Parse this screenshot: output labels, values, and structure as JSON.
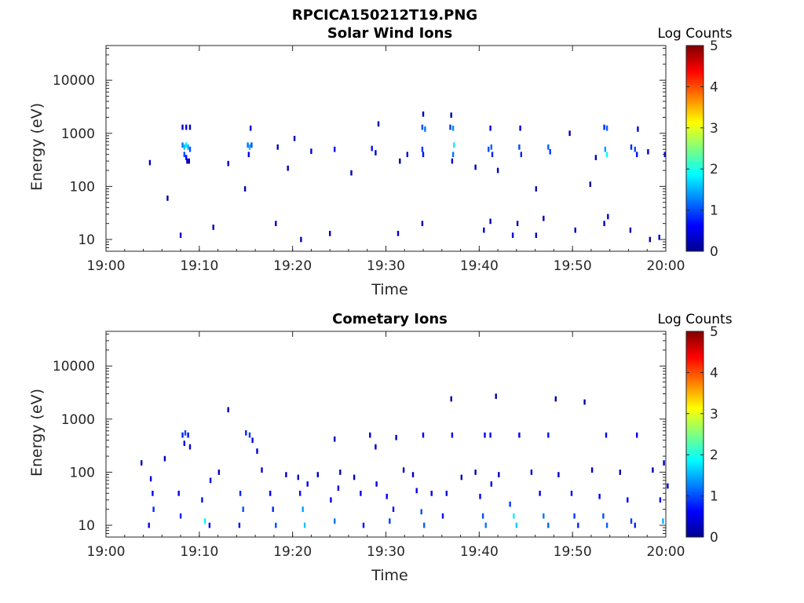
{
  "figure_title": "RPCICA150212T19.PNG",
  "chart_data": [
    {
      "type": "heatmap",
      "title": "Solar Wind Ions",
      "xlabel": "Time",
      "ylabel": "Energy (eV)",
      "x_ticks": [
        "19:00",
        "19:10",
        "19:20",
        "19:30",
        "19:40",
        "19:50",
        "20:00"
      ],
      "y_ticks": [
        "10",
        "100",
        "1000",
        "10000"
      ],
      "y_scale": "log",
      "ylim": [
        6,
        45000
      ],
      "xlim_minutes": [
        0,
        60
      ],
      "colorbar": {
        "label": "Log Counts",
        "ticks": [
          "0",
          "1",
          "2",
          "3",
          "4",
          "5"
        ],
        "range": [
          0,
          5
        ],
        "colormap": "jet"
      },
      "cells": [
        [
          8.1,
          1300,
          0.4
        ],
        [
          8.5,
          1300,
          0.6
        ],
        [
          8.9,
          1300,
          0.3
        ],
        [
          8.1,
          600,
          1.2
        ],
        [
          8.3,
          550,
          1.6
        ],
        [
          8.5,
          600,
          1.8
        ],
        [
          8.7,
          550,
          1.5
        ],
        [
          8.9,
          500,
          1.0
        ],
        [
          8.3,
          400,
          1.0
        ],
        [
          8.5,
          350,
          0.7
        ],
        [
          8.6,
          300,
          0.3
        ],
        [
          8.8,
          300,
          0.2
        ],
        [
          15.1,
          600,
          1.2
        ],
        [
          15.3,
          550,
          1.5
        ],
        [
          15.5,
          600,
          1.0
        ],
        [
          15.2,
          400,
          0.6
        ],
        [
          15.4,
          1250,
          0.5
        ],
        [
          33.8,
          1300,
          1.0
        ],
        [
          34.1,
          1200,
          1.2
        ],
        [
          33.9,
          2300,
          0.3
        ],
        [
          33.8,
          500,
          0.9
        ],
        [
          33.9,
          400,
          0.7
        ],
        [
          36.8,
          1300,
          0.9
        ],
        [
          37.1,
          1250,
          1.3
        ],
        [
          36.9,
          2200,
          0.2
        ],
        [
          37.2,
          600,
          1.8
        ],
        [
          37.1,
          400,
          1.2
        ],
        [
          37.0,
          300,
          0.5
        ],
        [
          40.9,
          500,
          1.0
        ],
        [
          41.2,
          550,
          1.1
        ],
        [
          41.1,
          1250,
          0.6
        ],
        [
          41.3,
          400,
          0.8
        ],
        [
          44.2,
          550,
          1.0
        ],
        [
          44.4,
          400,
          0.8
        ],
        [
          44.3,
          1250,
          0.4
        ],
        [
          47.3,
          550,
          1.1
        ],
        [
          47.5,
          450,
          0.9
        ],
        [
          53.3,
          1300,
          0.8
        ],
        [
          53.6,
          1250,
          1.1
        ],
        [
          53.4,
          500,
          1.4
        ],
        [
          53.6,
          400,
          1.9
        ],
        [
          56.2,
          550,
          0.8
        ],
        [
          56.6,
          500,
          1.0
        ],
        [
          56.8,
          400,
          0.7
        ],
        [
          56.9,
          1200,
          0.4
        ],
        [
          59.8,
          400,
          0.5
        ],
        [
          4.6,
          280,
          0.3
        ],
        [
          18.3,
          550,
          0.3
        ],
        [
          19.4,
          220,
          0.3
        ],
        [
          20.1,
          800,
          0.2
        ],
        [
          21.9,
          460,
          0.4
        ],
        [
          24.4,
          500,
          0.6
        ],
        [
          26.2,
          180,
          0.3
        ],
        [
          28.4,
          520,
          0.7
        ],
        [
          28.8,
          430,
          0.5
        ],
        [
          29.1,
          1500,
          0.3
        ],
        [
          31.4,
          300,
          0.2
        ],
        [
          32.2,
          400,
          0.5
        ],
        [
          39.5,
          230,
          0.3
        ],
        [
          41.9,
          200,
          0.3
        ],
        [
          46.0,
          90,
          0.2
        ],
        [
          49.6,
          1000,
          0.2
        ],
        [
          51.8,
          110,
          0.2
        ],
        [
          52.4,
          350,
          0.3
        ],
        [
          58.0,
          450,
          0.3
        ],
        [
          6.5,
          60,
          0.2
        ],
        [
          13.0,
          270,
          0.3
        ],
        [
          14.8,
          90,
          0.2
        ],
        [
          7.9,
          12,
          0.3
        ],
        [
          11.4,
          17,
          0.3
        ],
        [
          18.1,
          20,
          0.4
        ],
        [
          20.8,
          10,
          0.3
        ],
        [
          23.9,
          13,
          0.3
        ],
        [
          31.2,
          13,
          0.3
        ],
        [
          33.8,
          20,
          0.3
        ],
        [
          40.4,
          15,
          0.4
        ],
        [
          41.1,
          22,
          0.3
        ],
        [
          43.5,
          12,
          0.5
        ],
        [
          44.0,
          20,
          0.3
        ],
        [
          46.0,
          12,
          0.3
        ],
        [
          46.8,
          25,
          0.3
        ],
        [
          50.2,
          15,
          0.3
        ],
        [
          53.3,
          20,
          0.4
        ],
        [
          53.7,
          27,
          0.3
        ],
        [
          56.1,
          15,
          0.3
        ],
        [
          58.2,
          10,
          0.3
        ],
        [
          59.2,
          11,
          0.3
        ]
      ]
    },
    {
      "type": "heatmap",
      "title": "Cometary Ions",
      "xlabel": "Time",
      "ylabel": "Energy (eV)",
      "x_ticks": [
        "19:00",
        "19:10",
        "19:20",
        "19:30",
        "19:40",
        "19:50",
        "20:00"
      ],
      "y_ticks": [
        "10",
        "100",
        "1000",
        "10000"
      ],
      "y_scale": "log",
      "ylim": [
        6,
        45000
      ],
      "xlim_minutes": [
        0,
        60
      ],
      "colorbar": {
        "label": "Log Counts",
        "ticks": [
          "0",
          "1",
          "2",
          "3",
          "4",
          "5"
        ],
        "range": [
          0,
          5
        ],
        "colormap": "jet"
      },
      "cells": [
        [
          8.1,
          500,
          0.8
        ],
        [
          8.4,
          550,
          1.0
        ],
        [
          8.7,
          500,
          0.7
        ],
        [
          8.3,
          350,
          0.5
        ],
        [
          8.9,
          300,
          0.4
        ],
        [
          14.9,
          550,
          0.8
        ],
        [
          15.3,
          500,
          0.9
        ],
        [
          15.6,
          400,
          0.6
        ],
        [
          16.1,
          250,
          0.4
        ],
        [
          13.0,
          1500,
          0.2
        ],
        [
          24.4,
          420,
          0.3
        ],
        [
          28.2,
          500,
          0.4
        ],
        [
          28.8,
          300,
          0.4
        ],
        [
          31.0,
          450,
          0.3
        ],
        [
          33.9,
          500,
          0.6
        ],
        [
          37.0,
          500,
          0.6
        ],
        [
          36.9,
          2400,
          0.2
        ],
        [
          41.7,
          2700,
          0.2
        ],
        [
          40.5,
          500,
          0.6
        ],
        [
          41.1,
          500,
          0.7
        ],
        [
          44.2,
          500,
          0.6
        ],
        [
          47.3,
          500,
          0.7
        ],
        [
          48.1,
          2400,
          0.2
        ],
        [
          51.2,
          2100,
          0.2
        ],
        [
          53.5,
          500,
          0.6
        ],
        [
          56.8,
          500,
          0.6
        ],
        [
          59.7,
          150,
          0.3
        ],
        [
          3.7,
          150,
          0.3
        ],
        [
          6.2,
          180,
          0.3
        ],
        [
          4.7,
          75,
          0.5
        ],
        [
          4.9,
          40,
          0.6
        ],
        [
          5.0,
          20,
          0.8
        ],
        [
          4.5,
          10,
          0.6
        ],
        [
          7.7,
          40,
          0.5
        ],
        [
          7.9,
          15,
          0.8
        ],
        [
          10.2,
          30,
          0.7
        ],
        [
          10.5,
          12,
          1.8
        ],
        [
          11.1,
          70,
          0.5
        ],
        [
          11.0,
          10,
          0.6
        ],
        [
          14.3,
          40,
          0.8
        ],
        [
          14.6,
          20,
          1.0
        ],
        [
          14.2,
          10,
          0.7
        ],
        [
          17.5,
          40,
          0.6
        ],
        [
          17.8,
          20,
          0.8
        ],
        [
          18.1,
          10,
          1.0
        ],
        [
          20.7,
          40,
          0.7
        ],
        [
          21.0,
          20,
          1.4
        ],
        [
          21.2,
          10,
          1.6
        ],
        [
          21.5,
          60,
          0.5
        ],
        [
          24.0,
          30,
          0.6
        ],
        [
          24.4,
          12,
          1.2
        ],
        [
          24.8,
          50,
          0.5
        ],
        [
          27.2,
          40,
          0.6
        ],
        [
          27.5,
          10,
          0.7
        ],
        [
          28.9,
          60,
          0.6
        ],
        [
          30.0,
          35,
          0.6
        ],
        [
          30.3,
          12,
          0.9
        ],
        [
          30.7,
          20,
          0.7
        ],
        [
          33.2,
          45,
          0.6
        ],
        [
          33.7,
          18,
          1.0
        ],
        [
          34.0,
          10,
          1.1
        ],
        [
          34.8,
          40,
          0.5
        ],
        [
          36.0,
          15,
          0.7
        ],
        [
          36.4,
          40,
          0.5
        ],
        [
          40.0,
          35,
          0.6
        ],
        [
          40.3,
          15,
          1.0
        ],
        [
          40.6,
          10,
          1.2
        ],
        [
          41.2,
          60,
          0.6
        ],
        [
          43.2,
          25,
          0.9
        ],
        [
          43.6,
          15,
          1.8
        ],
        [
          43.9,
          10,
          1.6
        ],
        [
          46.4,
          40,
          0.6
        ],
        [
          46.8,
          15,
          1.2
        ],
        [
          47.3,
          10,
          1.1
        ],
        [
          49.8,
          40,
          0.6
        ],
        [
          50.1,
          15,
          0.9
        ],
        [
          50.5,
          10,
          0.8
        ],
        [
          52.8,
          35,
          0.6
        ],
        [
          53.2,
          15,
          1.0
        ],
        [
          53.6,
          10,
          1.1
        ],
        [
          55.8,
          30,
          0.6
        ],
        [
          56.2,
          12,
          0.9
        ],
        [
          56.6,
          10,
          0.8
        ],
        [
          59.3,
          30,
          0.6
        ],
        [
          59.6,
          12,
          1.5
        ],
        [
          60.1,
          55,
          0.5
        ],
        [
          12.0,
          100,
          0.3
        ],
        [
          16.6,
          110,
          0.4
        ],
        [
          19.2,
          90,
          0.3
        ],
        [
          20.5,
          80,
          0.4
        ],
        [
          22.6,
          90,
          0.3
        ],
        [
          25.0,
          100,
          0.3
        ],
        [
          26.5,
          80,
          0.3
        ],
        [
          31.8,
          110,
          0.3
        ],
        [
          32.8,
          90,
          0.3
        ],
        [
          38.0,
          80,
          0.3
        ],
        [
          39.5,
          100,
          0.3
        ],
        [
          42.0,
          90,
          0.3
        ],
        [
          45.5,
          100,
          0.3
        ],
        [
          48.4,
          90,
          0.3
        ],
        [
          52.0,
          110,
          0.3
        ],
        [
          55.0,
          100,
          0.3
        ],
        [
          58.5,
          110,
          0.3
        ]
      ]
    }
  ]
}
